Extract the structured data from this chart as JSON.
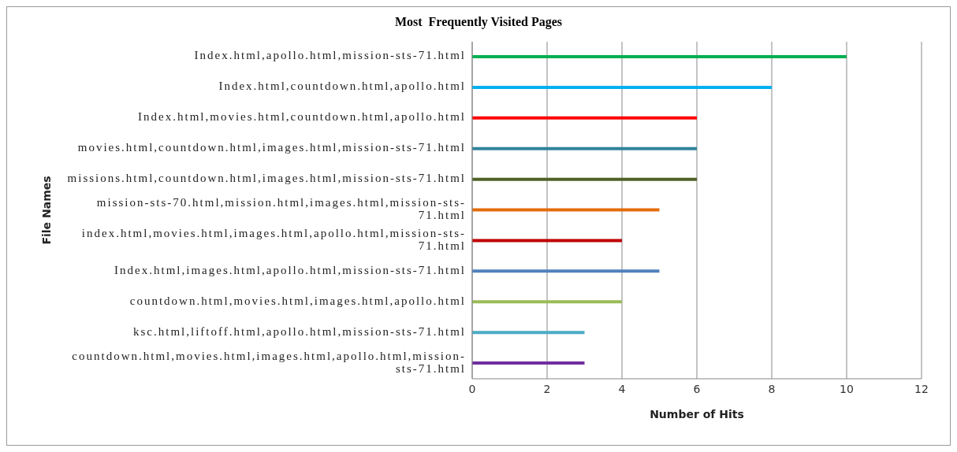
{
  "chart_data": {
    "type": "bar",
    "orientation": "horizontal",
    "title": "Most  Frequently Visited Pages",
    "xlabel": "Number of Hits",
    "ylabel": "File Names",
    "categories": [
      "Index.html,apollo.html,mission-sts-71.html",
      "Index.html,countdown.html,apollo.html",
      "Index.html,movies.html,countdown.html,apollo.html",
      "movies.html,countdown.html,images.html,mission-sts-71.html",
      "missions.html,countdown.html,images.html,mission-sts-71.html",
      "mission-sts-70.html,mission.html,images.html,mission-sts-71.html",
      "index.html,movies.html,images.html,apollo.html,mission-sts-71.html",
      "Index.html,images.html,apollo.html,mission-sts-71.html",
      "countdown.html,movies.html,images.html,apollo.html",
      "ksc.html,liftoff.html,apollo.html,mission-sts-71.html",
      "countdown.html,movies.html,images.html,apollo.html,mission-sts-71.html"
    ],
    "values": [
      10,
      8,
      6,
      6,
      6,
      5,
      4,
      5,
      4,
      3,
      3
    ],
    "colors": [
      "#00b050",
      "#00b0f0",
      "#ff0000",
      "#31849b",
      "#4f6228",
      "#e46c0a",
      "#c00000",
      "#4f81bd",
      "#9bbb59",
      "#4bacc6",
      "#7030a0"
    ],
    "xlim": [
      0,
      12
    ],
    "xticks": [
      0,
      2,
      4,
      6,
      8,
      10,
      12
    ],
    "grid": "x",
    "legend": false
  }
}
